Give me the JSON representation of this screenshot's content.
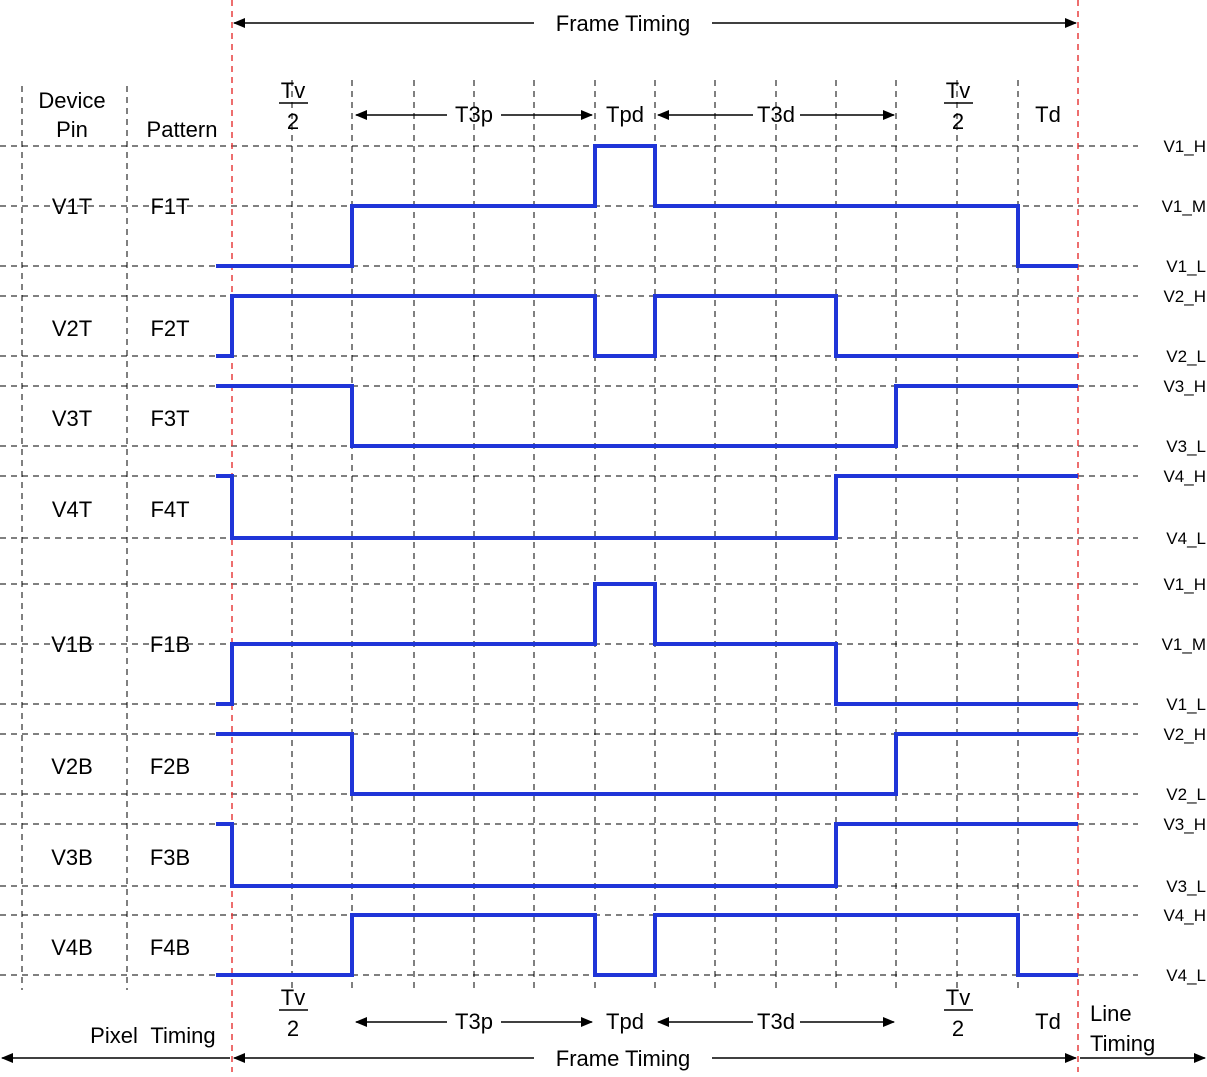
{
  "header": {
    "frame_timing_top": "Frame Timing",
    "col_device": "Device",
    "col_pin": "Pin",
    "col_pattern": "Pattern"
  },
  "intervals": {
    "tv_num": "Tv",
    "tv_den": "2",
    "t3p": "T3p",
    "tpd": "Tpd",
    "t3d": "T3d",
    "td": "Td"
  },
  "footer": {
    "pixel": "Pixel",
    "timing": "Timing",
    "frame_timing_bottom": "Frame Timing",
    "line": "Line",
    "line_timing": "Timing"
  },
  "signals": [
    {
      "pin": "V1T",
      "pattern": "F1T",
      "levels": [
        "V1_H",
        "V1_M",
        "V1_L"
      ],
      "states": [
        "L",
        "L",
        "M",
        "M",
        "M",
        "M",
        "H",
        "M",
        "M",
        "M",
        "M",
        "M",
        "L"
      ]
    },
    {
      "pin": "V2T",
      "pattern": "F2T",
      "levels": [
        "V2_H",
        "V2_L"
      ],
      "states": [
        "L",
        "H",
        "H",
        "H",
        "H",
        "H",
        "L",
        "H",
        "H",
        "H",
        "L",
        "L",
        "L"
      ]
    },
    {
      "pin": "V3T",
      "pattern": "F3T",
      "levels": [
        "V3_H",
        "V3_L"
      ],
      "states": [
        "H",
        "H",
        "L",
        "L",
        "L",
        "L",
        "L",
        "L",
        "L",
        "L",
        "L",
        "H",
        "H"
      ]
    },
    {
      "pin": "V4T",
      "pattern": "F4T",
      "levels": [
        "V4_H",
        "V4_L"
      ],
      "states": [
        "H",
        "L",
        "L",
        "L",
        "L",
        "L",
        "L",
        "L",
        "L",
        "L",
        "H",
        "H",
        "H"
      ]
    },
    {
      "pin": "V1B",
      "pattern": "F1B",
      "levels": [
        "V1_H",
        "V1_M",
        "V1_L"
      ],
      "states": [
        "L",
        "M",
        "M",
        "M",
        "M",
        "M",
        "H",
        "M",
        "M",
        "M",
        "L",
        "L",
        "L"
      ]
    },
    {
      "pin": "V2B",
      "pattern": "F2B",
      "levels": [
        "V2_H",
        "V2_L"
      ],
      "states": [
        "H",
        "H",
        "L",
        "L",
        "L",
        "L",
        "L",
        "L",
        "L",
        "L",
        "L",
        "H",
        "H"
      ]
    },
    {
      "pin": "V3B",
      "pattern": "F3B",
      "levels": [
        "V3_H",
        "V3_L"
      ],
      "states": [
        "H",
        "L",
        "L",
        "L",
        "L",
        "L",
        "L",
        "L",
        "L",
        "L",
        "H",
        "H",
        "H"
      ]
    },
    {
      "pin": "V4B",
      "pattern": "F4B",
      "levels": [
        "V4_H",
        "V4_L"
      ],
      "states": [
        "L",
        "L",
        "H",
        "H",
        "H",
        "H",
        "L",
        "H",
        "H",
        "H",
        "H",
        "H",
        "L"
      ]
    }
  ],
  "colors": {
    "waveform": "#1f35d8",
    "frame_boundary": "#e53030",
    "grid": "#000000"
  }
}
